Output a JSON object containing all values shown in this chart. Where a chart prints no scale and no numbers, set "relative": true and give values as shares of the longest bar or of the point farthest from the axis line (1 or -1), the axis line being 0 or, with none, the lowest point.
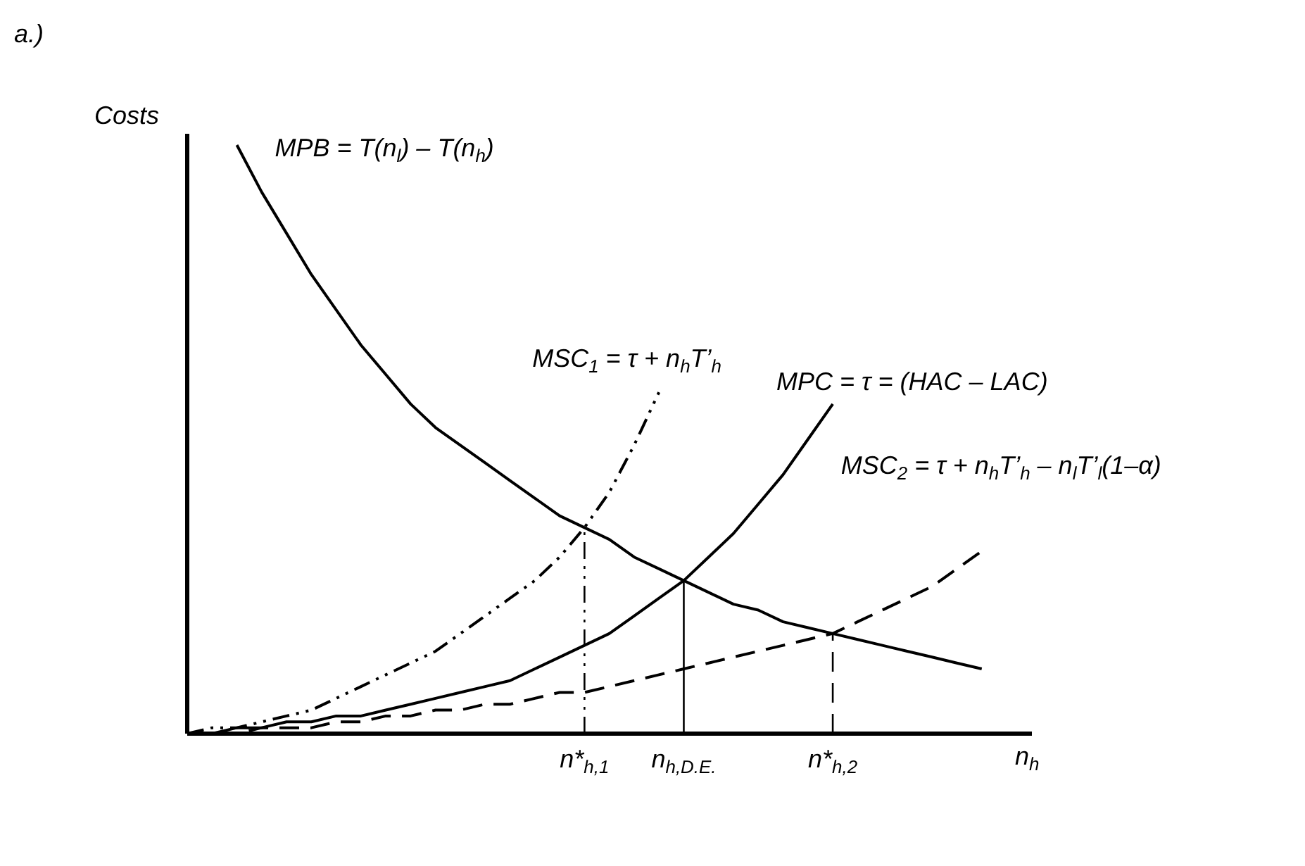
{
  "chart_data": {
    "type": "line",
    "title": "a.)",
    "ylabel": "Costs",
    "xlabel": "n$_{h}$",
    "relative": true,
    "categories": [
      null,
      null,
      null,
      null,
      null,
      null,
      null,
      null,
      null,
      null,
      null,
      null,
      null,
      null,
      null,
      null,
      "n*$_{h,1}$",
      null,
      null,
      null,
      "n$_{h,D.E.}$",
      null,
      null,
      null,
      null,
      null,
      "n*$_{h,2}$",
      null,
      null,
      null,
      null,
      null,
      null,
      null
    ],
    "series": [
      {
        "name": "MPB = T(n$_{l}$) – T(n$_{h}$)",
        "color": "#000000",
        "line_style": "solid",
        "values": [
          null,
          null,
          1.0,
          0.92,
          0.85,
          0.78,
          0.72,
          0.66,
          0.61,
          0.56,
          0.52,
          0.49,
          0.46,
          0.43,
          0.4,
          0.37,
          0.35,
          0.33,
          0.3,
          0.28,
          0.26,
          0.24,
          0.22,
          0.21,
          0.19,
          0.18,
          0.17,
          0.16,
          0.15,
          0.14,
          0.13,
          0.12,
          0.11,
          null
        ]
      },
      {
        "name": "MSC$_{1}$ = τ + n$_{h}$T’$_{h}$",
        "color": "#000000",
        "line_style": "dashdotdot",
        "values": [
          0,
          0.01,
          0.01,
          0.02,
          0.03,
          0.04,
          0.06,
          0.08,
          0.1,
          0.12,
          0.14,
          0.17,
          0.2,
          0.23,
          0.26,
          0.3,
          0.35,
          0.41,
          0.49,
          0.58,
          null,
          null,
          null,
          null,
          null,
          null,
          null,
          null,
          null,
          null,
          null,
          null,
          null,
          null
        ]
      },
      {
        "name": "MPC = τ = (HAC – LAC)",
        "color": "#000000",
        "line_style": "solid",
        "values": [
          0,
          0,
          0.01,
          0.01,
          0.02,
          0.02,
          0.03,
          0.03,
          0.04,
          0.05,
          0.06,
          0.07,
          0.08,
          0.09,
          0.11,
          0.13,
          0.15,
          0.17,
          0.2,
          0.23,
          0.26,
          0.3,
          0.34,
          0.39,
          0.44,
          0.5,
          0.56,
          null,
          null,
          null,
          null,
          null,
          null,
          null
        ]
      },
      {
        "name": "MSC$_{2}$ = τ + n$_{h}$T’$_{h}$ – n$_{l}$T’$_{l}$(1–α)",
        "color": "#000000",
        "line_style": "dashed",
        "values": [
          0,
          0,
          0,
          0.01,
          0.01,
          0.01,
          0.02,
          0.02,
          0.03,
          0.03,
          0.04,
          0.04,
          0.05,
          0.05,
          0.06,
          0.07,
          0.07,
          0.08,
          0.09,
          0.1,
          0.11,
          0.12,
          0.13,
          0.14,
          0.15,
          0.16,
          0.17,
          0.19,
          0.21,
          0.23,
          0.25,
          0.28,
          0.31,
          null
        ]
      }
    ],
    "ref_lines": [
      {
        "axis": "x",
        "value": "n*$_{h,1}$",
        "color": "#000000",
        "line_style": "dashdotdot"
      },
      {
        "axis": "x",
        "value": "n$_{h,D.E.}$",
        "color": "#000000",
        "line_style": "solid"
      },
      {
        "axis": "x",
        "value": "n*$_{h,2}$",
        "color": "#000000",
        "line_style": "dashed"
      }
    ]
  }
}
